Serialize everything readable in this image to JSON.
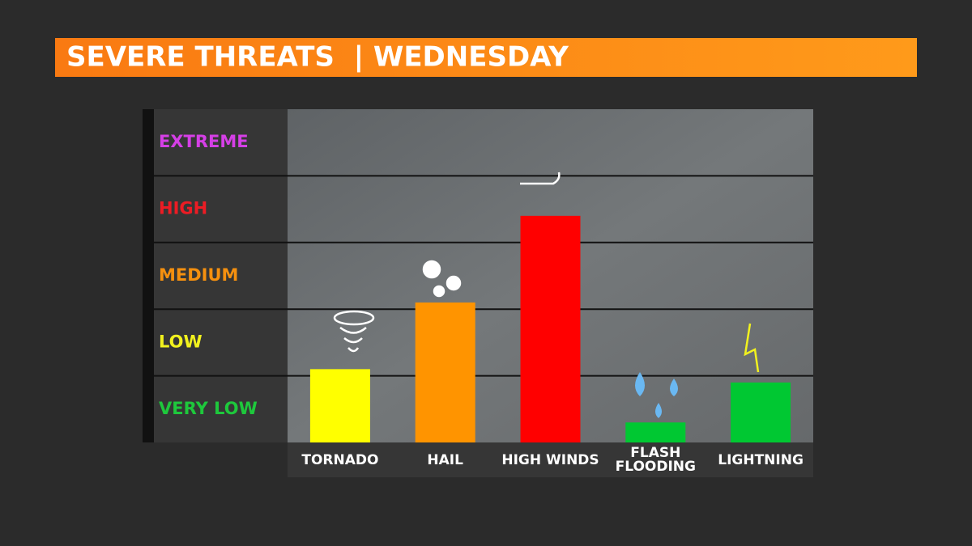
{
  "chart_data": {
    "type": "bar",
    "title": "SEVERE THREATS  | WEDNESDAY",
    "categories": [
      "TORNADO",
      "HAIL",
      "HIGH WINDS",
      "FLASH\nFLOODING",
      "LIGHTNING"
    ],
    "values": [
      1.1,
      2.1,
      3.4,
      0.3,
      0.9
    ],
    "colors": [
      "#ffff00",
      "#ff9400",
      "#ff0000",
      "#00c832",
      "#00c832"
    ],
    "ylim": [
      0,
      5
    ],
    "yticks": [
      {
        "value": 0.5,
        "label": "VERY LOW"
      },
      {
        "value": 1.5,
        "label": "LOW"
      },
      {
        "value": 2.5,
        "label": "MEDIUM"
      },
      {
        "value": 3.5,
        "label": "HIGH"
      },
      {
        "value": 4.5,
        "label": "EXTREME"
      }
    ],
    "ytick_colors": [
      "#1ec83c",
      "#f2f21e",
      "#f5900f",
      "#ec1c24",
      "#d53fe6"
    ],
    "grid": true
  }
}
